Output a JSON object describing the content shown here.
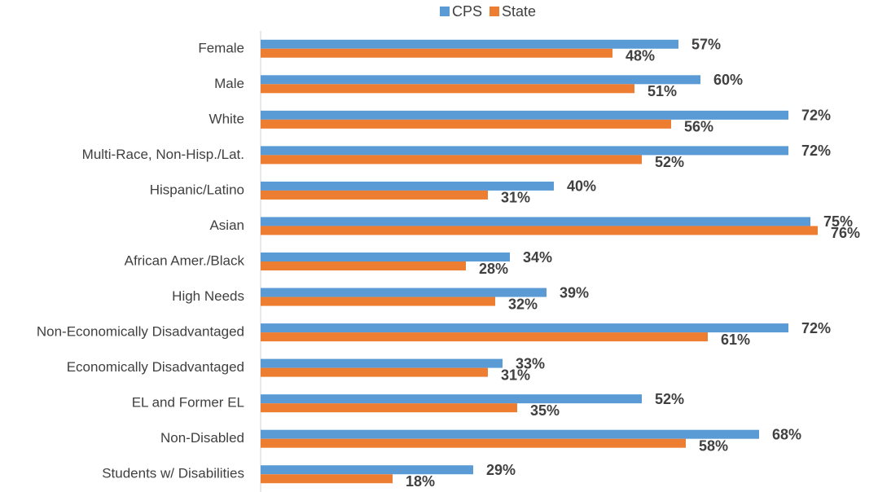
{
  "chart_data": {
    "type": "bar",
    "orientation": "horizontal",
    "categories": [
      "Female",
      "Male",
      "White",
      "Multi-Race, Non-Hisp./Lat.",
      "Hispanic/Latino",
      "Asian",
      "African Amer./Black",
      "High Needs",
      "Non-Economically Disadvantaged",
      "Economically Disadvantaged",
      "EL and Former EL",
      "Non-Disabled",
      "Students w/ Disabilities"
    ],
    "series": [
      {
        "name": "CPS",
        "color": "#5b9bd5",
        "values": [
          57,
          60,
          72,
          72,
          40,
          75,
          34,
          39,
          72,
          33,
          52,
          68,
          29
        ],
        "value_labels": [
          "57%",
          "60%",
          "72%",
          "72%",
          "40%",
          "75%",
          "34%",
          "39%",
          "72%",
          "33%",
          "52%",
          "68%",
          "29%"
        ]
      },
      {
        "name": "State",
        "color": "#ed7d31",
        "values": [
          48,
          51,
          56,
          52,
          31,
          76,
          28,
          32,
          61,
          31,
          35,
          58,
          18
        ],
        "value_labels": [
          "48%",
          "51%",
          "56%",
          "52%",
          "31%",
          "76%",
          "28%",
          "32%",
          "61%",
          "31%",
          "35%",
          "58%",
          "18%"
        ]
      }
    ],
    "xlim": [
      0,
      80
    ],
    "legend": "top"
  }
}
